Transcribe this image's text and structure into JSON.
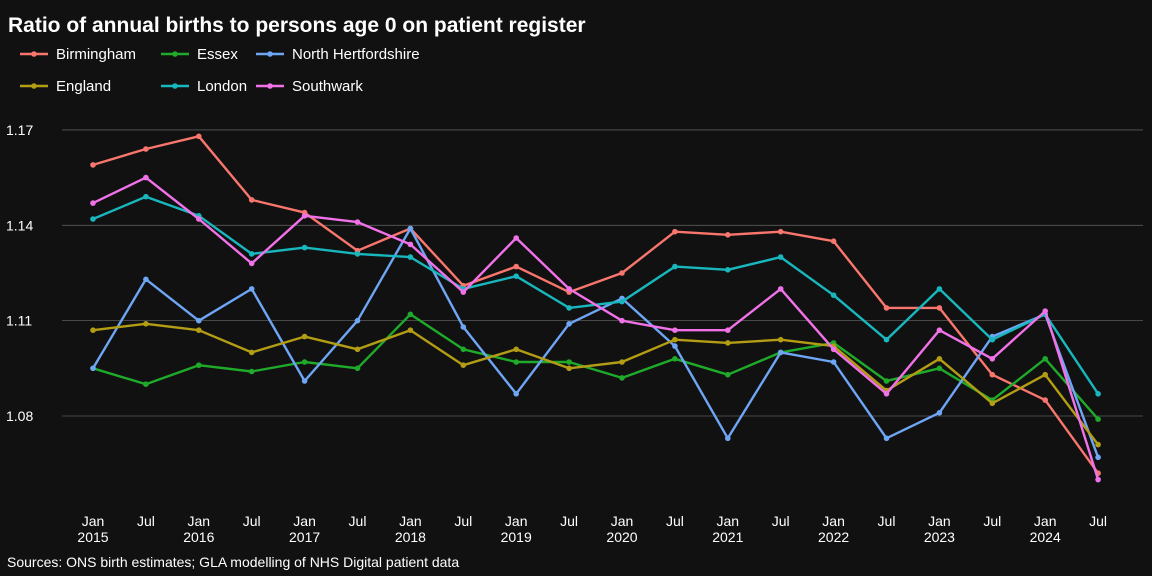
{
  "chart_data": {
    "type": "line",
    "title": "Ratio of annual births to persons age 0 on patient register",
    "caption": "Sources: ONS birth estimates; GLA modelling of NHS Digital patient data",
    "xlabel": "",
    "ylabel": "",
    "x": [
      "Jan 2015",
      "Jul 2015",
      "Jan 2016",
      "Jul 2016",
      "Jan 2017",
      "Jul 2017",
      "Jan 2018",
      "Jul 2018",
      "Jan 2019",
      "Jul 2019",
      "Jan 2020",
      "Jul 2020",
      "Jan 2021",
      "Jul 2021",
      "Jan 2022",
      "Jul 2022",
      "Jan 2023",
      "Jul 2023",
      "Jan 2024",
      "Jul 2024"
    ],
    "x_tick_labels": [
      {
        "line1": "Jan",
        "line2": "2015"
      },
      {
        "line1": "Jul",
        "line2": ""
      },
      {
        "line1": "Jan",
        "line2": "2016"
      },
      {
        "line1": "Jul",
        "line2": ""
      },
      {
        "line1": "Jan",
        "line2": "2017"
      },
      {
        "line1": "Jul",
        "line2": ""
      },
      {
        "line1": "Jan",
        "line2": "2018"
      },
      {
        "line1": "Jul",
        "line2": ""
      },
      {
        "line1": "Jan",
        "line2": "2019"
      },
      {
        "line1": "Jul",
        "line2": ""
      },
      {
        "line1": "Jan",
        "line2": "2020"
      },
      {
        "line1": "Jul",
        "line2": ""
      },
      {
        "line1": "Jan",
        "line2": "2021"
      },
      {
        "line1": "Jul",
        "line2": ""
      },
      {
        "line1": "Jan",
        "line2": "2022"
      },
      {
        "line1": "Jul",
        "line2": ""
      },
      {
        "line1": "Jan",
        "line2": "2023"
      },
      {
        "line1": "Jul",
        "line2": ""
      },
      {
        "line1": "Jan",
        "line2": "2024"
      },
      {
        "line1": "Jul",
        "line2": ""
      }
    ],
    "y_ticks": [
      1.08,
      1.11,
      1.14,
      1.17
    ],
    "y_tick_labels": [
      "1.08",
      "1.11",
      "1.14",
      "1.17"
    ],
    "ylim": [
      1.052,
      1.181
    ],
    "grid": "horizontal",
    "legend_placement": "top-left",
    "series": [
      {
        "name": "Birmingham",
        "color": "#f8766d",
        "values": [
          1.159,
          1.164,
          1.168,
          1.148,
          1.144,
          1.132,
          1.139,
          1.121,
          1.127,
          1.119,
          1.125,
          1.138,
          1.137,
          1.138,
          1.135,
          1.114,
          1.114,
          1.093,
          1.085,
          1.062
        ]
      },
      {
        "name": "Essex",
        "color": "#1faa2a",
        "values": [
          1.095,
          1.09,
          1.096,
          1.094,
          1.097,
          1.095,
          1.112,
          1.101,
          1.097,
          1.097,
          1.092,
          1.098,
          1.093,
          1.1,
          1.103,
          1.091,
          1.095,
          1.085,
          1.098,
          1.079
        ]
      },
      {
        "name": "North Hertfordshire",
        "color": "#6ea6f5",
        "values": [
          1.095,
          1.123,
          1.11,
          1.12,
          1.091,
          1.11,
          1.139,
          1.108,
          1.087,
          1.109,
          1.117,
          1.102,
          1.073,
          1.1,
          1.097,
          1.073,
          1.081,
          1.105,
          1.112,
          1.067
        ]
      },
      {
        "name": "England",
        "color": "#b39d14",
        "values": [
          1.107,
          1.109,
          1.107,
          1.1,
          1.105,
          1.101,
          1.107,
          1.096,
          1.101,
          1.095,
          1.097,
          1.104,
          1.103,
          1.104,
          1.102,
          1.088,
          1.098,
          1.084,
          1.093,
          1.071
        ]
      },
      {
        "name": "London",
        "color": "#18b7bd",
        "values": [
          1.142,
          1.149,
          1.143,
          1.131,
          1.133,
          1.131,
          1.13,
          1.12,
          1.124,
          1.114,
          1.116,
          1.127,
          1.126,
          1.13,
          1.118,
          1.104,
          1.12,
          1.104,
          1.112,
          1.087
        ]
      },
      {
        "name": "Southwark",
        "color": "#f172e8",
        "values": [
          1.147,
          1.155,
          1.142,
          1.128,
          1.143,
          1.141,
          1.134,
          1.119,
          1.136,
          1.12,
          1.11,
          1.107,
          1.107,
          1.12,
          1.101,
          1.087,
          1.107,
          1.098,
          1.113,
          1.06
        ]
      }
    ]
  }
}
